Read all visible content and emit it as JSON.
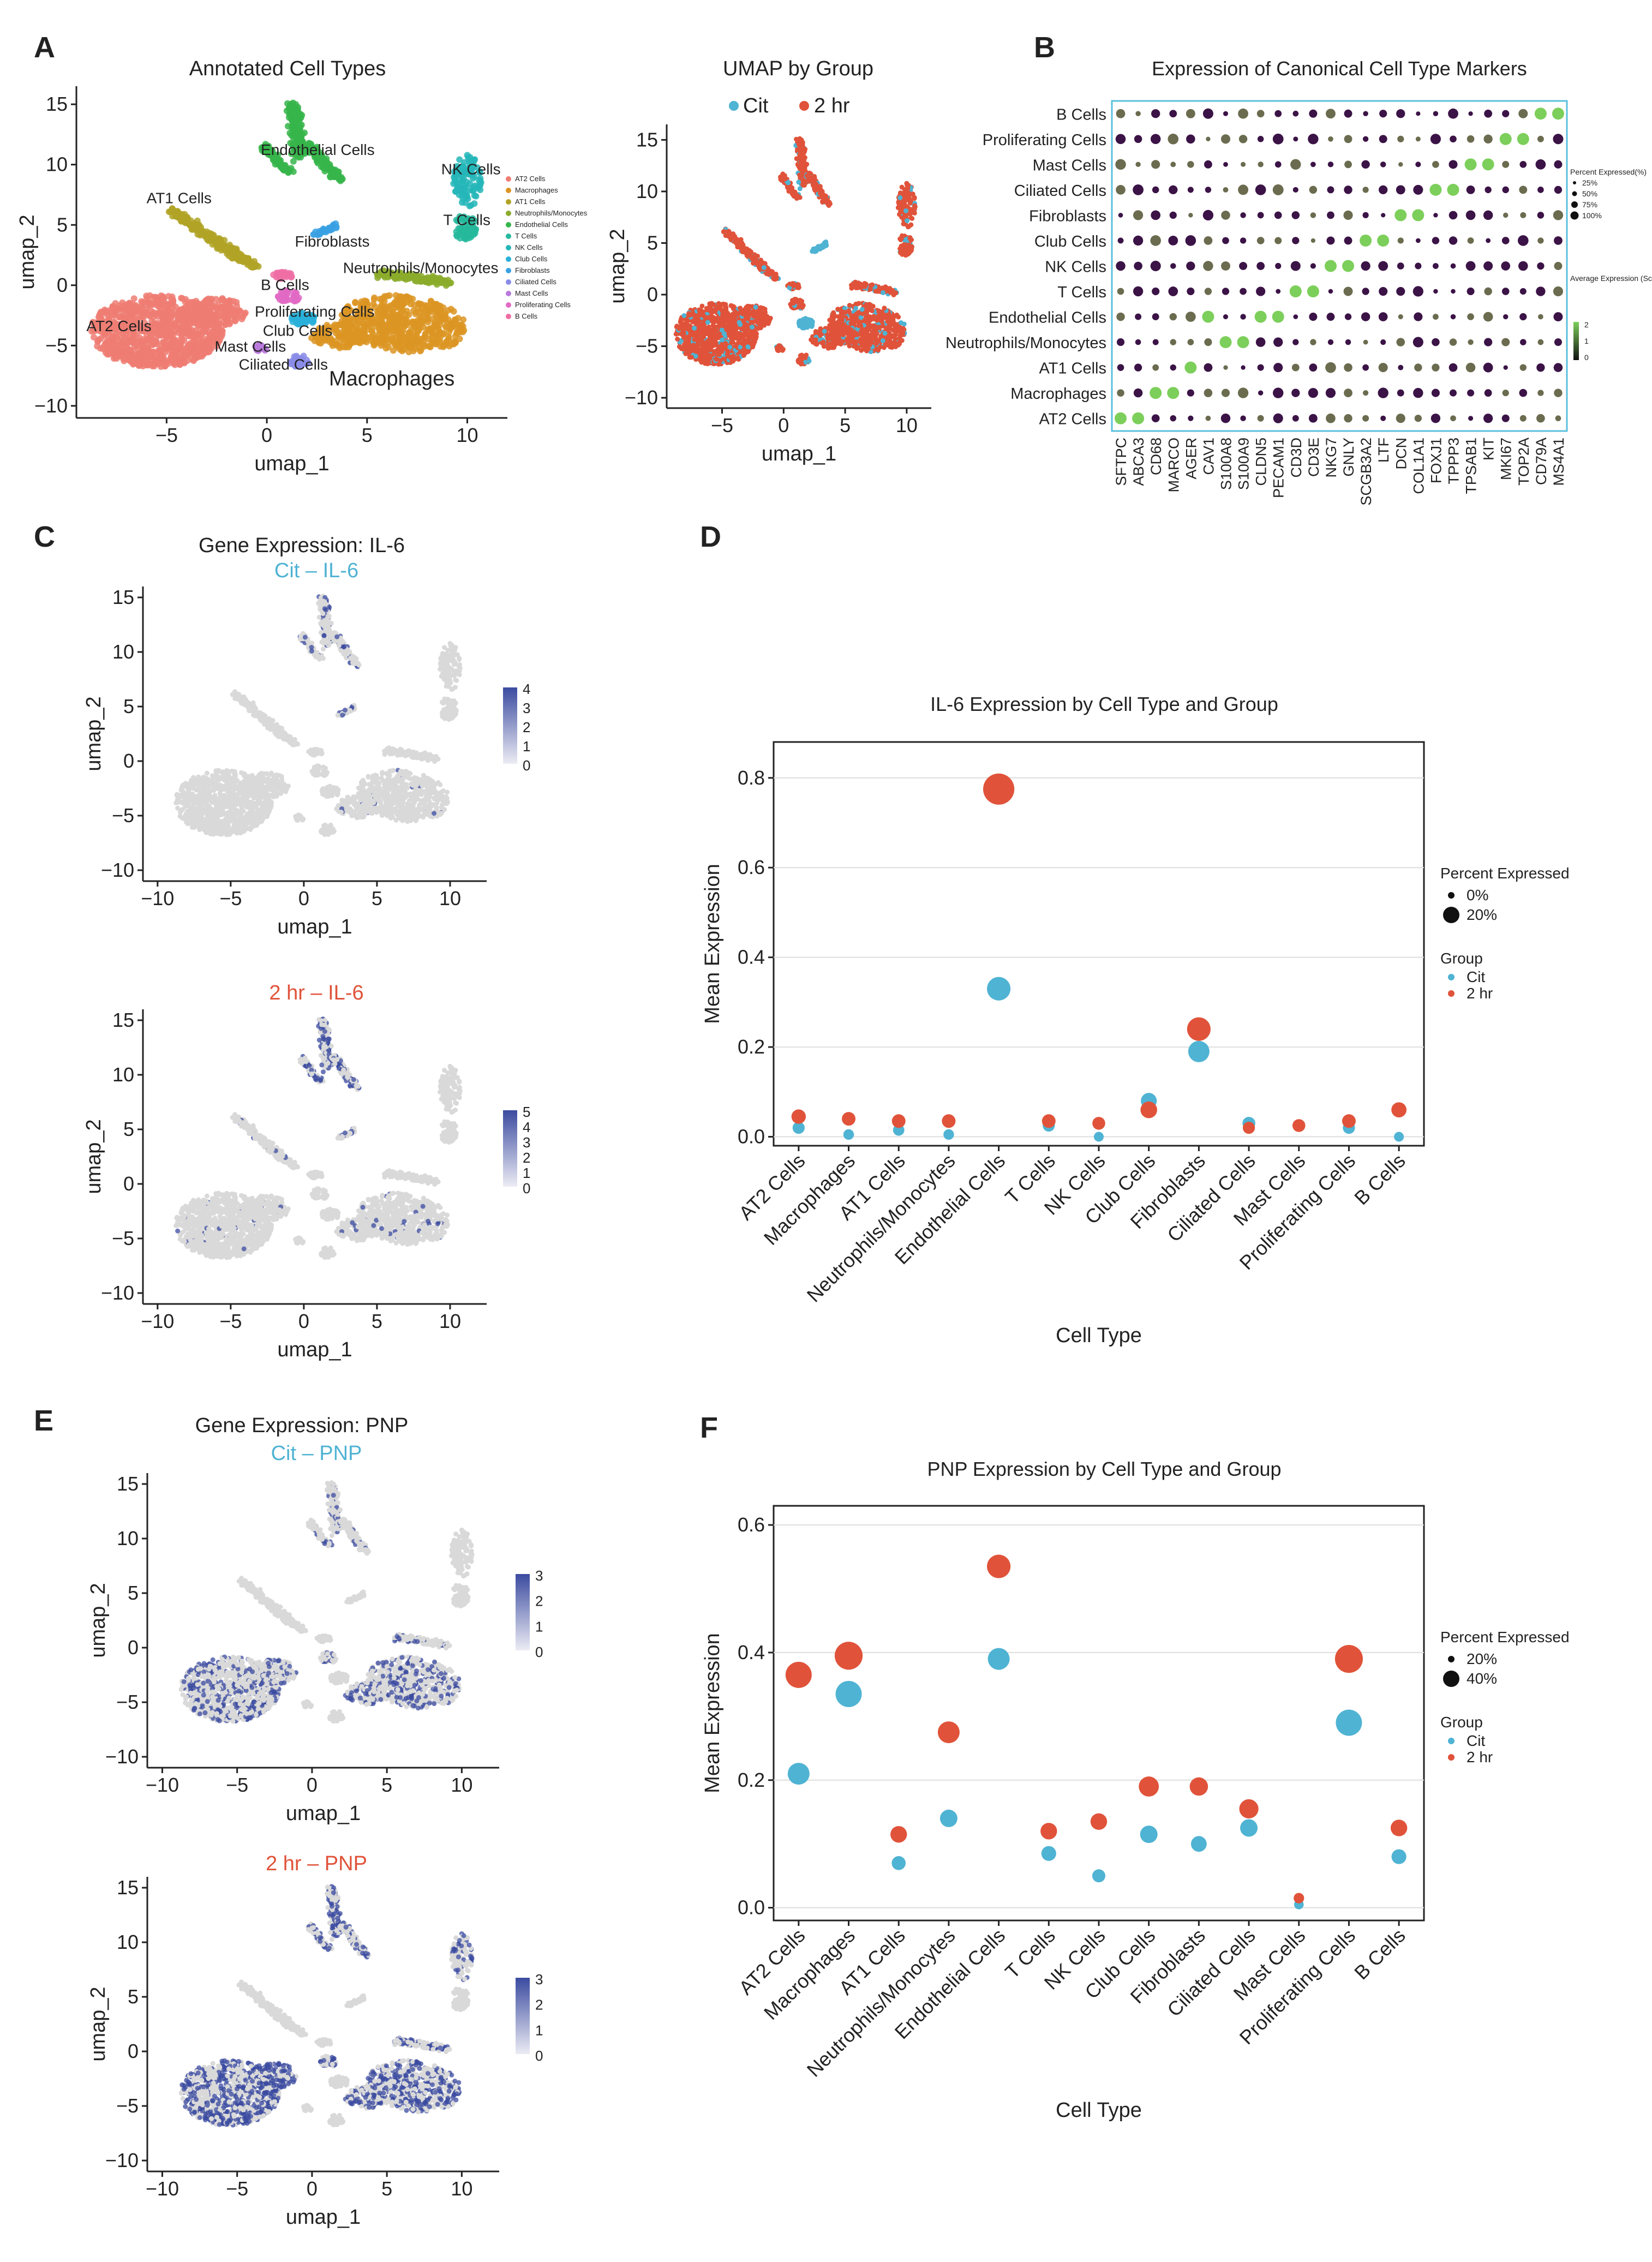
{
  "panels": {
    "A": {
      "letter": "A",
      "umap_title": "Annotated Cell Types",
      "group_title": "UMAP by Group",
      "xlabel": "umap_1",
      "ylabel": "umap_2",
      "group_legend": [
        "Cit",
        "2 hr"
      ],
      "cluster_labels": [
        "Endothelial Cells",
        "NK Cells",
        "T Cells",
        "AT1 Cells",
        "Fibroblasts",
        "Neutrophils/Monocytes",
        "B Cells",
        "Proliferating Cells",
        "AT2 Cells",
        "Club Cells",
        "Mast Cells",
        "Ciliated Cells",
        "Macrophages"
      ],
      "legend_items": [
        "AT2 Cells",
        "Macrophages",
        "AT1 Cells",
        "Neutrophils/Monocytes",
        "Endothelial Cells",
        "T Cells",
        "NK Cells",
        "Club Cells",
        "Fibroblasts",
        "Ciliated Cells",
        "Mast Cells",
        "Proliferating Cells",
        "B Cells"
      ]
    },
    "B": {
      "letter": "B",
      "title": "Expression of Canonical Cell Type Markers",
      "rows": [
        "B Cells",
        "Proliferating Cells",
        "Mast Cells",
        "Ciliated Cells",
        "Fibroblasts",
        "Club Cells",
        "NK Cells",
        "T Cells",
        "Endothelial Cells",
        "Neutrophils/Monocytes",
        "AT1 Cells",
        "Macrophages",
        "AT2 Cells"
      ],
      "genes": [
        "SFTPC",
        "ABCA3",
        "CD68",
        "MARCO",
        "AGER",
        "CAV1",
        "S100A8",
        "S100A9",
        "CLDN5",
        "PECAM1",
        "CD3D",
        "CD3E",
        "NKG7",
        "GNLY",
        "SCGB3A2",
        "LTF",
        "DCN",
        "COL1A1",
        "FOXJ1",
        "TPPP3",
        "TPSAB1",
        "KIT",
        "MKI67",
        "TOP2A",
        "CD79A",
        "MS4A1"
      ],
      "pct_legend_title": "Percent Expressed(%)",
      "pct_legend": [
        "25%",
        "50%",
        "75%",
        "100%"
      ],
      "avg_legend_title": "Average Expression (Scaled)",
      "avg_legend": [
        "2",
        "1",
        "0"
      ]
    },
    "C": {
      "letter": "C",
      "title": "Gene Expression: IL-6",
      "sub1": "Cit – IL-6",
      "sub2": "2 hr – IL-6",
      "xlabel": "umap_1",
      "ylabel": "umap_2",
      "scale1": [
        "4",
        "3",
        "2",
        "1",
        "0"
      ],
      "scale2": [
        "5",
        "4",
        "3",
        "2",
        "1",
        "0"
      ]
    },
    "E": {
      "letter": "E",
      "title": "Gene Expression: PNP",
      "sub1": "Cit – PNP",
      "sub2": "2 hr – PNP",
      "xlabel": "umap_1",
      "ylabel": "umap_2",
      "scale1": [
        "3",
        "2",
        "1",
        "0"
      ],
      "scale2": [
        "3",
        "2",
        "1",
        "0"
      ]
    }
  },
  "colors": {
    "cit": "#4fb3d3",
    "hr2": "#e0533a",
    "border_b": "#5bc0de",
    "feature_high": "#3b4ba0",
    "feature_low": "#d9d9d9"
  },
  "chart_data": [
    {
      "panel": "D",
      "letter": "D",
      "type": "scatter",
      "title": "IL-6 Expression by Cell Type and Group",
      "xlabel": "Cell Type",
      "ylabel": "Mean Expression",
      "categories": [
        "AT2 Cells",
        "Macrophages",
        "AT1 Cells",
        "Neutrophils/Monocytes",
        "Endothelial Cells",
        "T Cells",
        "NK Cells",
        "Club Cells",
        "Fibroblasts",
        "Ciliated Cells",
        "Mast Cells",
        "Proliferating Cells",
        "B Cells"
      ],
      "ylim": [
        -0.02,
        0.88
      ],
      "yticks": [
        "0.0",
        "0.2",
        "0.4",
        "0.6",
        "0.8"
      ],
      "grid": true,
      "legend_size_title": "Percent Expressed",
      "legend_size_items": [
        "0%",
        "20%"
      ],
      "legend_group_title": "Group",
      "series": [
        {
          "name": "Cit",
          "values": [
            0.02,
            0.005,
            0.015,
            0.005,
            0.33,
            0.025,
            0.0,
            0.08,
            0.19,
            0.03,
            0.025,
            0.02,
            0.0
          ],
          "pct": [
            3,
            1,
            2,
            1,
            18,
            3,
            0,
            8,
            15,
            4,
            3,
            3,
            0
          ]
        },
        {
          "name": "2 hr",
          "values": [
            0.045,
            0.04,
            0.035,
            0.035,
            0.775,
            0.035,
            0.03,
            0.06,
            0.24,
            0.02,
            0.025,
            0.035,
            0.06
          ],
          "pct": [
            6,
            5,
            5,
            5,
            28,
            5,
            4,
            9,
            18,
            3,
            4,
            5,
            7
          ]
        }
      ]
    },
    {
      "panel": "F",
      "letter": "F",
      "type": "scatter",
      "title": "PNP Expression by Cell Type and Group",
      "xlabel": "Cell Type",
      "ylabel": "Mean Expression",
      "categories": [
        "AT2 Cells",
        "Macrophages",
        "AT1 Cells",
        "Neutrophils/Monocytes",
        "Endothelial Cells",
        "T Cells",
        "NK Cells",
        "Club Cells",
        "Fibroblasts",
        "Ciliated Cells",
        "Mast Cells",
        "Proliferating Cells",
        "B Cells"
      ],
      "ylim": [
        -0.02,
        0.63
      ],
      "yticks": [
        "0.0",
        "0.2",
        "0.4",
        "0.6"
      ],
      "grid": true,
      "legend_size_title": "Percent Expressed",
      "legend_size_items": [
        "20%",
        "40%"
      ],
      "legend_group_title": "Group",
      "series": [
        {
          "name": "Cit",
          "values": [
            0.21,
            0.335,
            0.07,
            0.14,
            0.39,
            0.085,
            0.05,
            0.115,
            0.1,
            0.125,
            0.005,
            0.29,
            0.08
          ],
          "pct": [
            30,
            40,
            12,
            20,
            30,
            14,
            10,
            20,
            16,
            20,
            2,
            40,
            14
          ]
        },
        {
          "name": "2 hr",
          "values": [
            0.365,
            0.395,
            0.115,
            0.275,
            0.535,
            0.12,
            0.135,
            0.19,
            0.19,
            0.155,
            0.015,
            0.39,
            0.125
          ],
          "pct": [
            40,
            44,
            18,
            30,
            34,
            18,
            18,
            26,
            22,
            24,
            4,
            44,
            18
          ]
        }
      ]
    }
  ]
}
